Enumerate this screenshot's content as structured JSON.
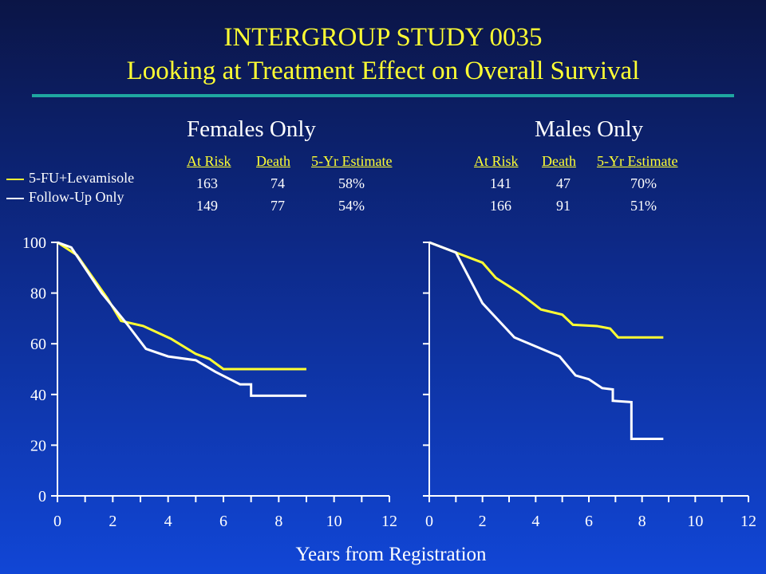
{
  "title_line1": "INTERGROUP STUDY 0035",
  "title_line2": "Looking at Treatment Effect on Overall Survival",
  "legend": [
    {
      "label": "5-FU+Levamisole",
      "color": "#ffff33"
    },
    {
      "label": "Follow-Up Only",
      "color": "#ffffff"
    }
  ],
  "x_axis_title": "Years from Registration",
  "stats_headers": [
    "At Risk",
    "Death",
    "5-Yr Estimate"
  ],
  "panels": [
    {
      "title": "Females Only",
      "stats": [
        {
          "at_risk": "163",
          "death": "74",
          "estimate": "58%"
        },
        {
          "at_risk": "149",
          "death": "77",
          "estimate": "54%"
        }
      ]
    },
    {
      "title": "Males Only",
      "stats": [
        {
          "at_risk": "141",
          "death": "47",
          "estimate": "70%"
        },
        {
          "at_risk": "166",
          "death": "91",
          "estimate": "51%"
        }
      ]
    }
  ],
  "chart_data": [
    {
      "type": "line",
      "title": "Females Only",
      "xlabel": "Years from Registration",
      "ylabel": "",
      "xlim": [
        0,
        12
      ],
      "ylim": [
        0,
        100
      ],
      "xticks": [
        0,
        2,
        4,
        6,
        8,
        10,
        12
      ],
      "yticks": [
        0,
        20,
        40,
        60,
        80,
        100
      ],
      "grid": false,
      "series": [
        {
          "name": "5-FU+Levamisole",
          "color": "#ffff33",
          "step": false,
          "x": [
            0,
            0.7,
            1.8,
            2.3,
            3.1,
            4.1,
            5.0,
            5.5,
            6.0,
            7.0,
            9.0
          ],
          "y": [
            100,
            95,
            78,
            69,
            67,
            62,
            56,
            54,
            50,
            50,
            50
          ]
        },
        {
          "name": "Follow-Up Only",
          "color": "#ffffff",
          "step": false,
          "x": [
            0,
            0.5,
            1.6,
            2.5,
            3.2,
            4.0,
            5.0,
            5.7,
            6.6,
            7.0,
            7.0,
            9.0
          ],
          "y": [
            100,
            98,
            80,
            68,
            58,
            55,
            53.5,
            49,
            44,
            44,
            39.5,
            39.5
          ]
        }
      ]
    },
    {
      "type": "line",
      "title": "Males Only",
      "xlabel": "Years from Registration",
      "ylabel": "",
      "xlim": [
        0,
        12
      ],
      "ylim": [
        0,
        100
      ],
      "xticks": [
        0,
        2,
        4,
        6,
        8,
        10,
        12
      ],
      "yticks": [
        0,
        20,
        40,
        60,
        80,
        100
      ],
      "grid": false,
      "series": [
        {
          "name": "5-FU+Levamisole",
          "color": "#ffff33",
          "step": false,
          "x": [
            0,
            1.0,
            2.0,
            2.5,
            3.4,
            4.2,
            5.0,
            5.4,
            6.3,
            6.8,
            7.1,
            8.8
          ],
          "y": [
            100,
            96,
            92,
            86,
            80,
            73.5,
            71.5,
            67.5,
            67,
            66,
            62.5,
            62.5
          ]
        },
        {
          "name": "Follow-Up Only",
          "color": "#ffffff",
          "step": false,
          "x": [
            0,
            1.0,
            2.0,
            3.2,
            4.9,
            5.5,
            6.0,
            6.5,
            6.9,
            6.9,
            7.6,
            7.6,
            8.8
          ],
          "y": [
            100,
            96,
            76,
            62.5,
            55,
            47.5,
            46,
            42.5,
            42,
            37.5,
            37,
            22.5,
            22.5
          ]
        }
      ]
    }
  ]
}
